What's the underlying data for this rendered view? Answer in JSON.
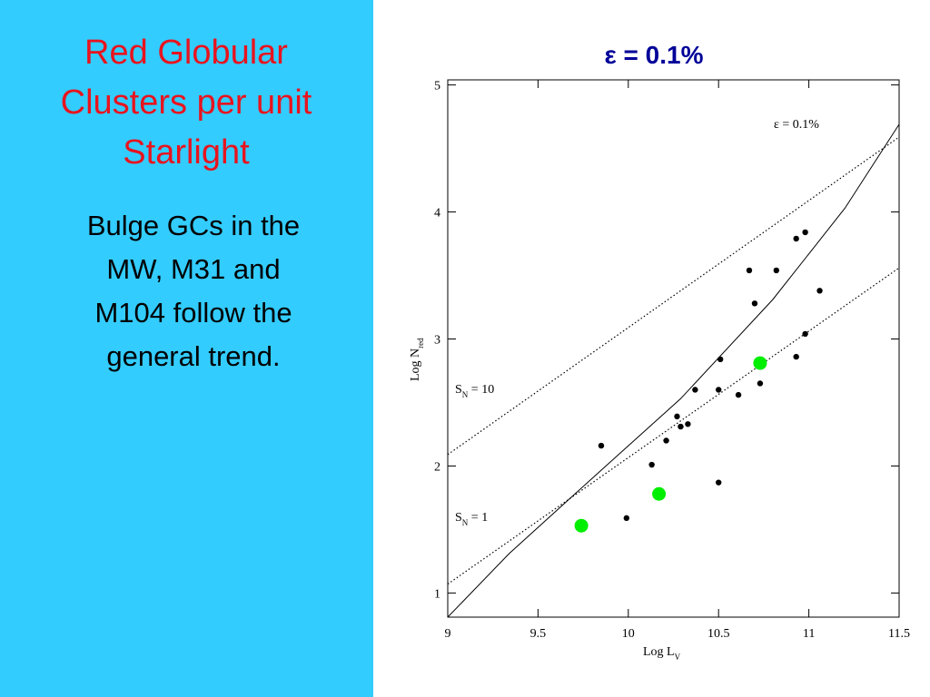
{
  "slide": {
    "title": [
      "Red Globular",
      "Clusters per unit",
      "Starlight"
    ],
    "body": [
      "Bulge GCs in the",
      "MW, M31 and",
      "M104 follow the",
      "general trend."
    ]
  },
  "chart_data": {
    "type": "scatter",
    "title": "ε = 0.1%",
    "annotation": "ε = 0.1%",
    "xlabel": [
      "Log L",
      "V"
    ],
    "ylabel": [
      "Log N",
      "red"
    ],
    "xlim": [
      9,
      11.5
    ],
    "ylim": [
      0.81,
      5.04
    ],
    "xticks": [
      9,
      9.5,
      10,
      10.5,
      11,
      11.5
    ],
    "yticks": [
      1,
      2,
      3,
      4,
      5
    ],
    "points": {
      "color": "#000000",
      "x": [
        9.85,
        9.99,
        10.13,
        10.21,
        10.27,
        10.29,
        10.33,
        10.37,
        10.5,
        10.5,
        10.51,
        10.61,
        10.67,
        10.7,
        10.73,
        10.82,
        10.93,
        10.93,
        10.98,
        10.98,
        11.06
      ],
      "y": [
        2.16,
        1.59,
        2.01,
        2.2,
        2.39,
        2.31,
        2.33,
        2.6,
        1.87,
        2.6,
        2.84,
        2.56,
        3.54,
        3.28,
        2.65,
        3.54,
        3.79,
        2.86,
        3.04,
        3.84,
        3.38
      ]
    },
    "highlight": {
      "color": "#00ee00",
      "x": [
        9.74,
        10.17,
        10.73
      ],
      "y": [
        1.53,
        1.78,
        2.81
      ]
    },
    "lines": [
      {
        "style": "solid",
        "x": [
          9,
          9.34,
          9.79,
          10.29,
          10.8,
          11.2,
          11.5
        ],
        "y": [
          0.81,
          1.31,
          1.89,
          2.53,
          3.31,
          4.03,
          4.69
        ]
      },
      {
        "style": "dotted",
        "label": [
          "S",
          "N",
          " = 10"
        ],
        "x": [
          9,
          11.5
        ],
        "y": [
          2.09,
          4.59
        ]
      },
      {
        "style": "dotted",
        "label": [
          "S",
          "N",
          " = 1"
        ],
        "x": [
          9,
          11.5
        ],
        "y": [
          1.07,
          3.56
        ]
      }
    ]
  }
}
